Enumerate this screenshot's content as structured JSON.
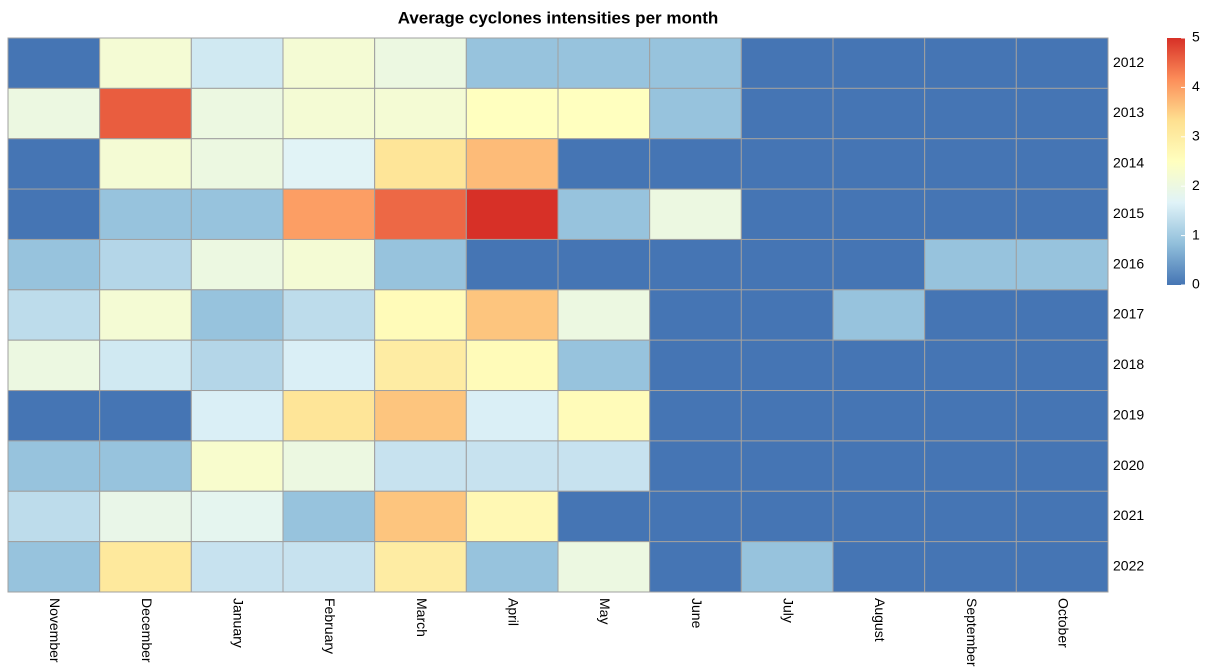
{
  "chart_data": {
    "type": "heatmap",
    "title": "Average cyclones intensities per month",
    "x": [
      "November",
      "December",
      "January",
      "February",
      "March",
      "April",
      "May",
      "June",
      "July",
      "August",
      "September",
      "October"
    ],
    "y": [
      "2012",
      "2013",
      "2014",
      "2015",
      "2016",
      "2017",
      "2018",
      "2019",
      "2020",
      "2021",
      "2022"
    ],
    "z": [
      [
        0,
        2.2,
        1.5,
        2.2,
        2.0,
        0.9,
        0.9,
        0.9,
        0,
        0,
        0,
        0
      ],
      [
        2.0,
        4.6,
        2.0,
        2.2,
        2.2,
        2.5,
        2.5,
        0.9,
        0,
        0,
        0,
        0
      ],
      [
        0,
        2.2,
        2.0,
        1.7,
        3.2,
        3.7,
        0,
        0,
        0,
        0,
        0,
        0
      ],
      [
        0,
        0.9,
        0.9,
        4.0,
        4.5,
        5,
        0.9,
        2.0,
        0,
        0,
        0,
        0
      ],
      [
        0.9,
        1.2,
        2.0,
        2.2,
        0.9,
        0,
        0,
        0,
        0,
        0,
        0.9,
        0.9
      ],
      [
        1.3,
        2.2,
        0.9,
        1.3,
        2.6,
        3.6,
        2.0,
        0,
        0,
        0.9,
        0,
        0
      ],
      [
        2.0,
        1.5,
        1.2,
        1.6,
        3.0,
        2.6,
        0.9,
        0,
        0,
        0,
        0,
        0
      ],
      [
        0,
        0,
        1.6,
        3.2,
        3.6,
        1.6,
        2.6,
        0,
        0,
        0,
        0,
        0
      ],
      [
        0.9,
        0.9,
        2.3,
        2.0,
        1.4,
        1.4,
        1.4,
        0,
        0,
        0,
        0,
        0
      ],
      [
        1.3,
        1.9,
        1.8,
        0.9,
        3.6,
        2.7,
        0,
        0,
        0,
        0,
        0,
        0
      ],
      [
        0.9,
        3.1,
        1.4,
        1.4,
        3.0,
        0.9,
        2.0,
        0,
        0.9,
        0,
        0,
        0
      ]
    ],
    "zlim": [
      0,
      5
    ],
    "zticks": [
      0,
      1,
      2,
      3,
      4,
      5
    ],
    "colors": [
      "#4575B4",
      "#91BFDB",
      "#E0F3F8",
      "#FFFFBF",
      "#FEE090",
      "#FC8D59",
      "#D73027"
    ],
    "cell_border": "#a0a0a0"
  }
}
